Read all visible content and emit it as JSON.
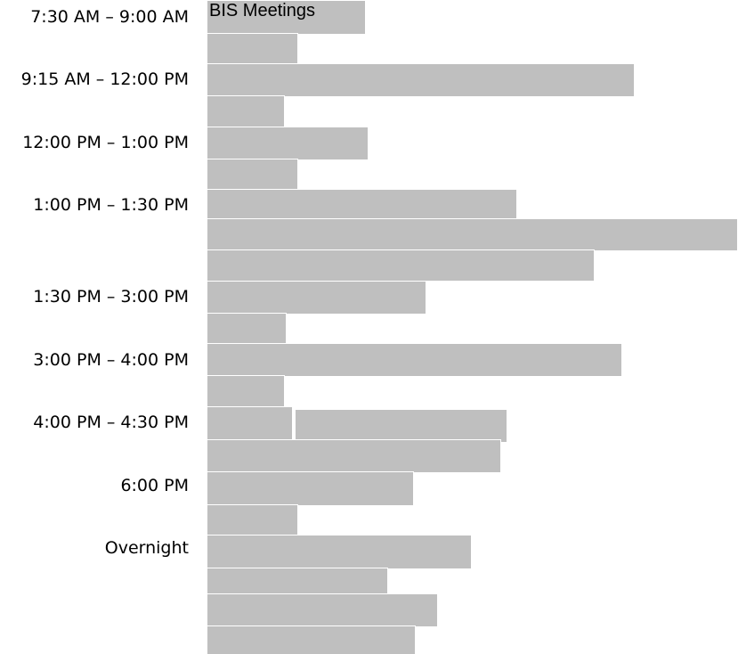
{
  "title": "BIS Meetings",
  "bar_color": "#bfbfbf",
  "time_slots": [
    {
      "label": "7:30 AM – 9:00 AM"
    },
    {
      "label": "9:15 AM – 12:00 PM"
    },
    {
      "label": "12:00 PM – 1:00 PM"
    },
    {
      "label": "1:00 PM – 1:30 PM"
    },
    {
      "label": "1:30 PM – 3:00 PM"
    },
    {
      "label": "3:00 PM – 4:00 PM"
    },
    {
      "label": "4:00 PM – 4:30 PM"
    },
    {
      "label": "6:00 PM"
    },
    {
      "label": "Overnight"
    }
  ]
}
